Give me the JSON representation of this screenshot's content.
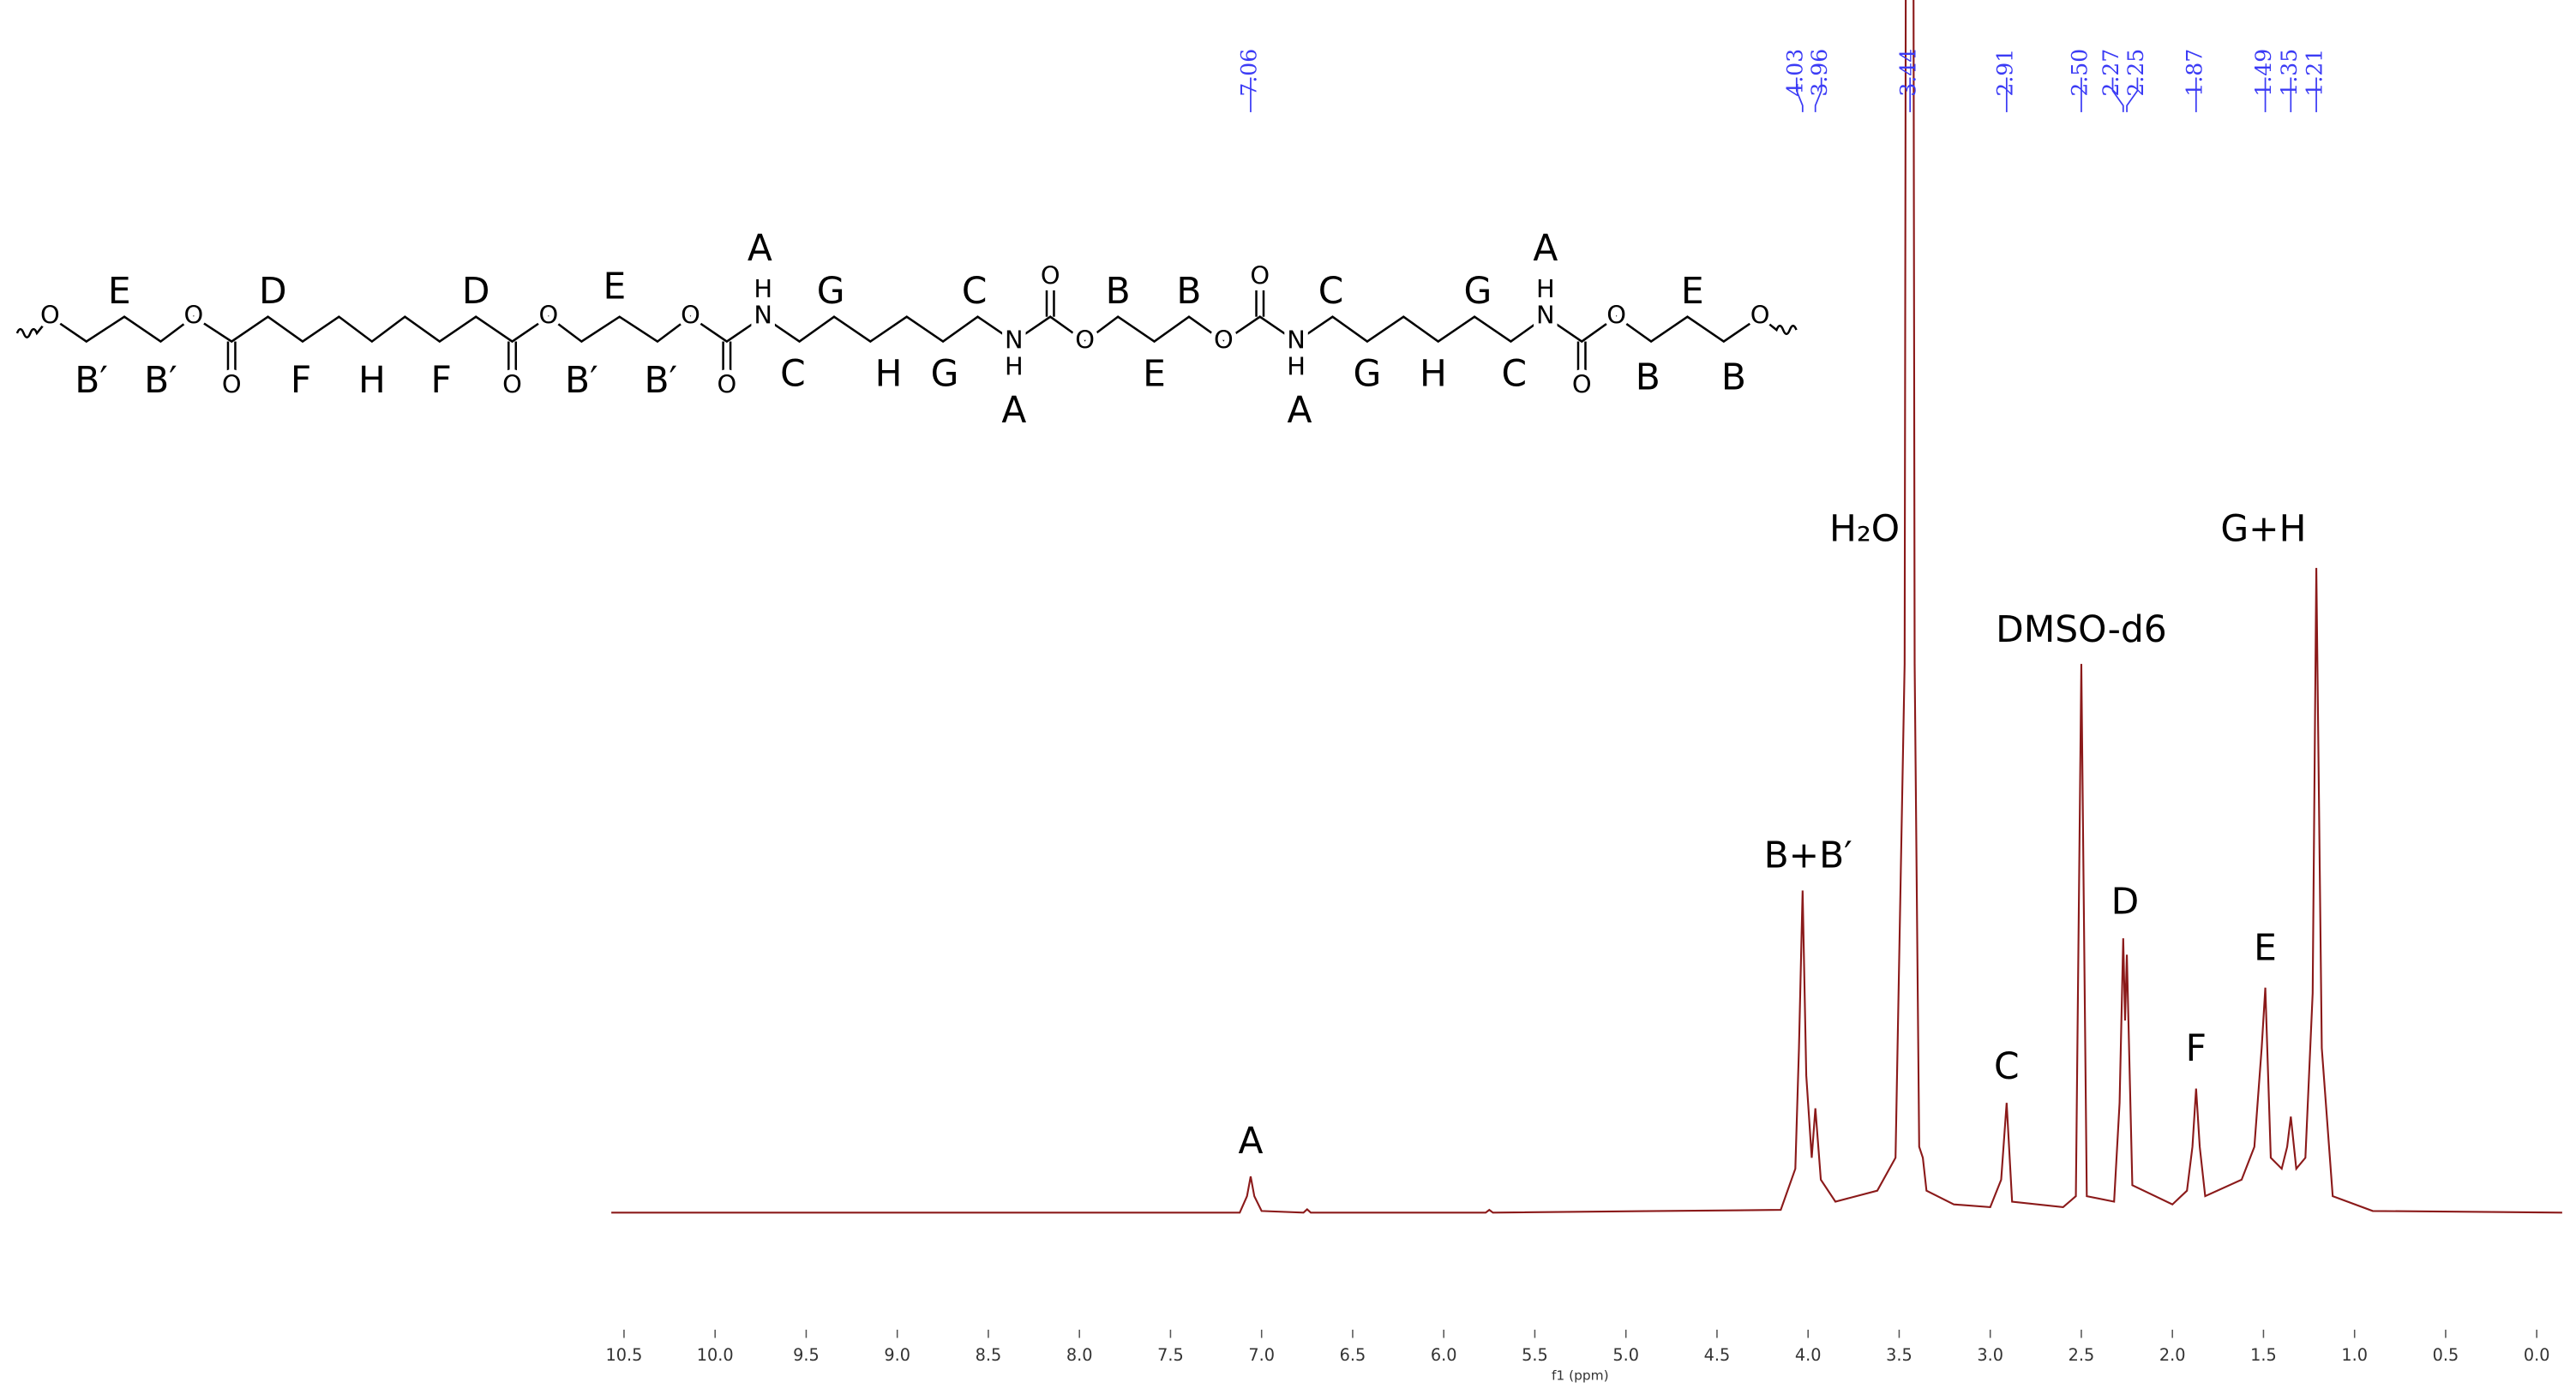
{
  "chart_data": {
    "type": "line",
    "x_label": "f1 (ppm)",
    "xlim": [
      10.57,
      -0.14
    ],
    "ylim": [
      -7.5,
      221
    ],
    "xticks": [
      10.5,
      {
        "value": 10,
        "label": "10.0"
      },
      9.5,
      {
        "value": 9,
        "label": "9.0"
      },
      8.5,
      {
        "value": 8,
        "label": "8.0"
      },
      7.5,
      {
        "value": 7,
        "label": "7.0"
      },
      6.5,
      {
        "value": 6,
        "label": "6.0"
      },
      5.5,
      {
        "value": 5,
        "label": "5.0"
      },
      4.5,
      {
        "value": 4,
        "label": "4.0"
      },
      3.5,
      {
        "value": 3,
        "label": "3.0"
      },
      2.5,
      {
        "value": 2,
        "label": "2.0"
      },
      1.5,
      {
        "value": 1,
        "label": "1.0"
      },
      0.5,
      {
        "value": 0,
        "label": "0.0"
      }
    ],
    "series": [
      {
        "color": "#8b1a1a",
        "x": [
          10.57,
          7.12,
          7.08,
          7.06,
          7.04,
          7.0,
          6.77,
          6.75,
          6.73,
          5.77,
          5.75,
          5.73,
          4.15,
          4.07,
          4.05,
          4.03,
          4.01,
          3.98,
          3.96,
          3.93,
          3.85,
          3.62,
          3.52,
          3.47,
          3.455,
          3.43,
          3.415,
          3.39,
          3.37,
          3.35,
          3.2,
          3.0,
          2.94,
          2.91,
          2.88,
          2.6,
          2.53,
          2.5,
          2.47,
          2.32,
          2.29,
          2.27,
          2.26,
          2.25,
          2.22,
          2.0,
          1.92,
          1.89,
          1.87,
          1.85,
          1.82,
          1.62,
          1.55,
          1.51,
          1.49,
          1.46,
          1.4,
          1.37,
          1.35,
          1.32,
          1.27,
          1.23,
          1.21,
          1.18,
          1.12,
          0.9,
          -0.14
        ],
        "values": [
          0,
          0,
          3,
          6.6,
          3,
          0.3,
          0,
          0.6,
          0,
          0,
          0.5,
          0,
          0.5,
          8,
          30,
          58.7,
          25,
          10,
          19,
          6,
          2,
          4,
          10,
          100,
          400,
          400,
          100,
          12,
          10,
          4,
          1.5,
          1,
          6,
          20,
          2,
          1,
          3,
          100,
          3,
          2,
          20,
          50,
          35,
          47,
          5,
          1.5,
          4,
          12,
          22.6,
          12,
          3,
          6,
          12,
          30,
          41,
          10,
          8,
          12,
          17.5,
          8,
          10,
          40,
          117.5,
          30,
          3,
          0.3,
          0
        ]
      }
    ],
    "peak_picks": [
      7.06,
      4.03,
      3.96,
      3.44,
      2.91,
      {
        "value": 2.5,
        "label": "2.50"
      },
      2.27,
      2.25,
      1.87,
      1.49,
      1.35,
      1.21
    ],
    "peak_pick_color": "#3b3bf5",
    "annotations": [
      {
        "text": "A",
        "x": 7.06
      },
      {
        "text": "B+B′",
        "x": 4.0
      },
      {
        "text": "H₂O",
        "x": 3.69
      },
      {
        "text": "C",
        "x": 2.91
      },
      {
        "text": "DMSO-d6",
        "x": 2.5
      },
      {
        "text": "D",
        "x": 2.26
      },
      {
        "text": "F",
        "x": 1.87
      },
      {
        "text": "E",
        "x": 1.49
      },
      {
        "text": "G+H",
        "x": 1.5
      }
    ]
  },
  "structure": {
    "atoms": [
      "O",
      "O",
      "O",
      "O",
      "O",
      "O",
      "O",
      "N",
      "H",
      "N",
      "H",
      "O",
      "O",
      "O",
      "O",
      "N",
      "H",
      "N",
      "H",
      "O",
      "O",
      "O"
    ],
    "labels": [
      "E",
      "B′",
      "B′",
      "D",
      "F",
      "H",
      "F",
      "D",
      "E",
      "B′",
      "B′",
      "A",
      "C",
      "G",
      "H",
      "G",
      "C",
      "A",
      "B",
      "B",
      "E",
      "C",
      "A",
      "G",
      "H",
      "G",
      "C",
      "A",
      "E",
      "B",
      "B"
    ]
  }
}
